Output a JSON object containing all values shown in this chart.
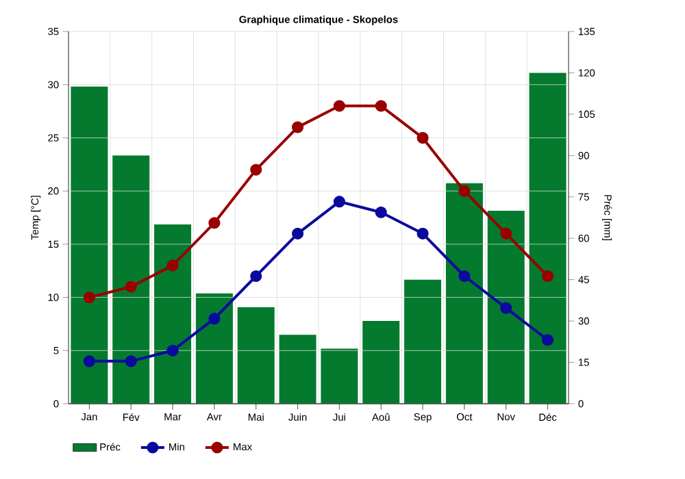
{
  "chart_data": {
    "type": "line",
    "title": "Graphique climatique - Skopelos",
    "ylabel": "Temp [°C]",
    "y2label": "Préc [mm]",
    "categories": [
      "Jan",
      "Fév",
      "Mar",
      "Avr",
      "Mai",
      "Juin",
      "Jui",
      "Aoû",
      "Sep",
      "Oct",
      "Nov",
      "Déc"
    ],
    "series": [
      {
        "name": "Préc",
        "type": "bar",
        "axis": "y2",
        "color": "#047a2f",
        "values": [
          115,
          90,
          65,
          40,
          35,
          25,
          20,
          30,
          45,
          80,
          70,
          120
        ]
      },
      {
        "name": "Min",
        "color": "#0a0a9c",
        "values": [
          4,
          4,
          5,
          8,
          12,
          16,
          19,
          18,
          16,
          12,
          9,
          6
        ]
      },
      {
        "name": "Max",
        "color": "#990000",
        "values": [
          10,
          11,
          13,
          17,
          22,
          26,
          28,
          28,
          25,
          20,
          16,
          12
        ]
      }
    ],
    "ylim": [
      0,
      35
    ],
    "yticks": [
      0,
      5,
      10,
      15,
      20,
      25,
      30,
      35
    ],
    "y2lim": [
      0,
      135
    ],
    "y2ticks": [
      0,
      15,
      30,
      45,
      60,
      75,
      90,
      105,
      120,
      135
    ],
    "grid": true,
    "legend": "bottom",
    "marker": "circle"
  }
}
